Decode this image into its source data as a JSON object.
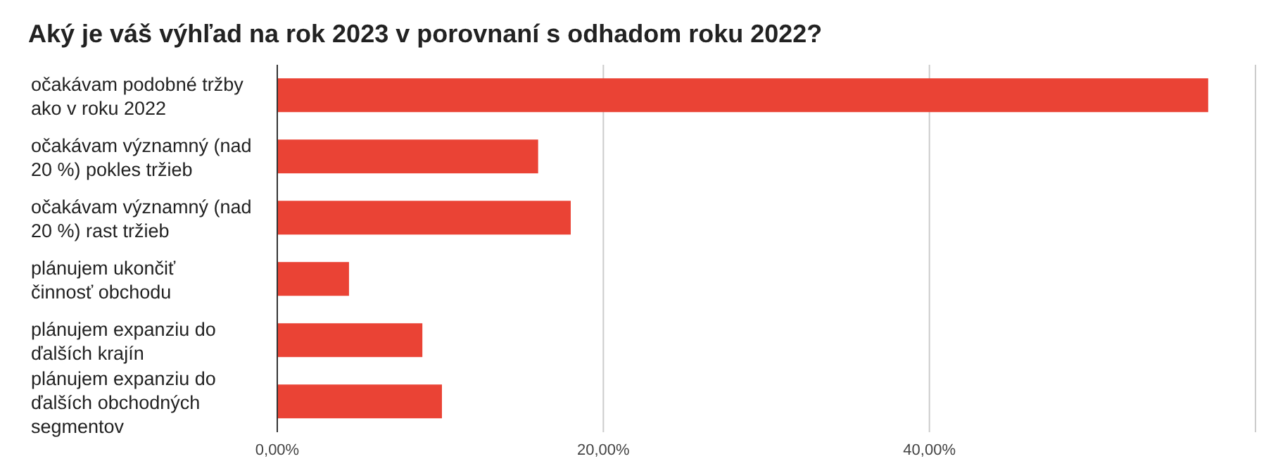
{
  "chart_data": {
    "type": "bar",
    "orientation": "horizontal",
    "title": "Aký je váš výhľad na rok 2023 v porovnaní s odhadom roku 2022?",
    "categories": [
      "očakávam podobné tržby ako v roku 2022",
      "očakávam významný (nad 20 %) pokles tržieb",
      "očakávam významný (nad 20 %) rast tržieb",
      "plánujem ukončiť činnosť obchodu",
      "plánujem expanziu do ďalších krajín",
      "plánujem expanziu do ďalších obchodných segmentov"
    ],
    "values": [
      57.1,
      16.0,
      18.0,
      4.4,
      8.9,
      10.1
    ],
    "color": "#ea4335",
    "xlim": [
      0,
      60
    ],
    "xticks": [
      {
        "value": 0,
        "label": "0,00%"
      },
      {
        "value": 20,
        "label": "20,00%"
      },
      {
        "value": 40,
        "label": "40,00%"
      },
      {
        "value": 60,
        "label": null
      }
    ],
    "grid": "x",
    "legend": false
  }
}
